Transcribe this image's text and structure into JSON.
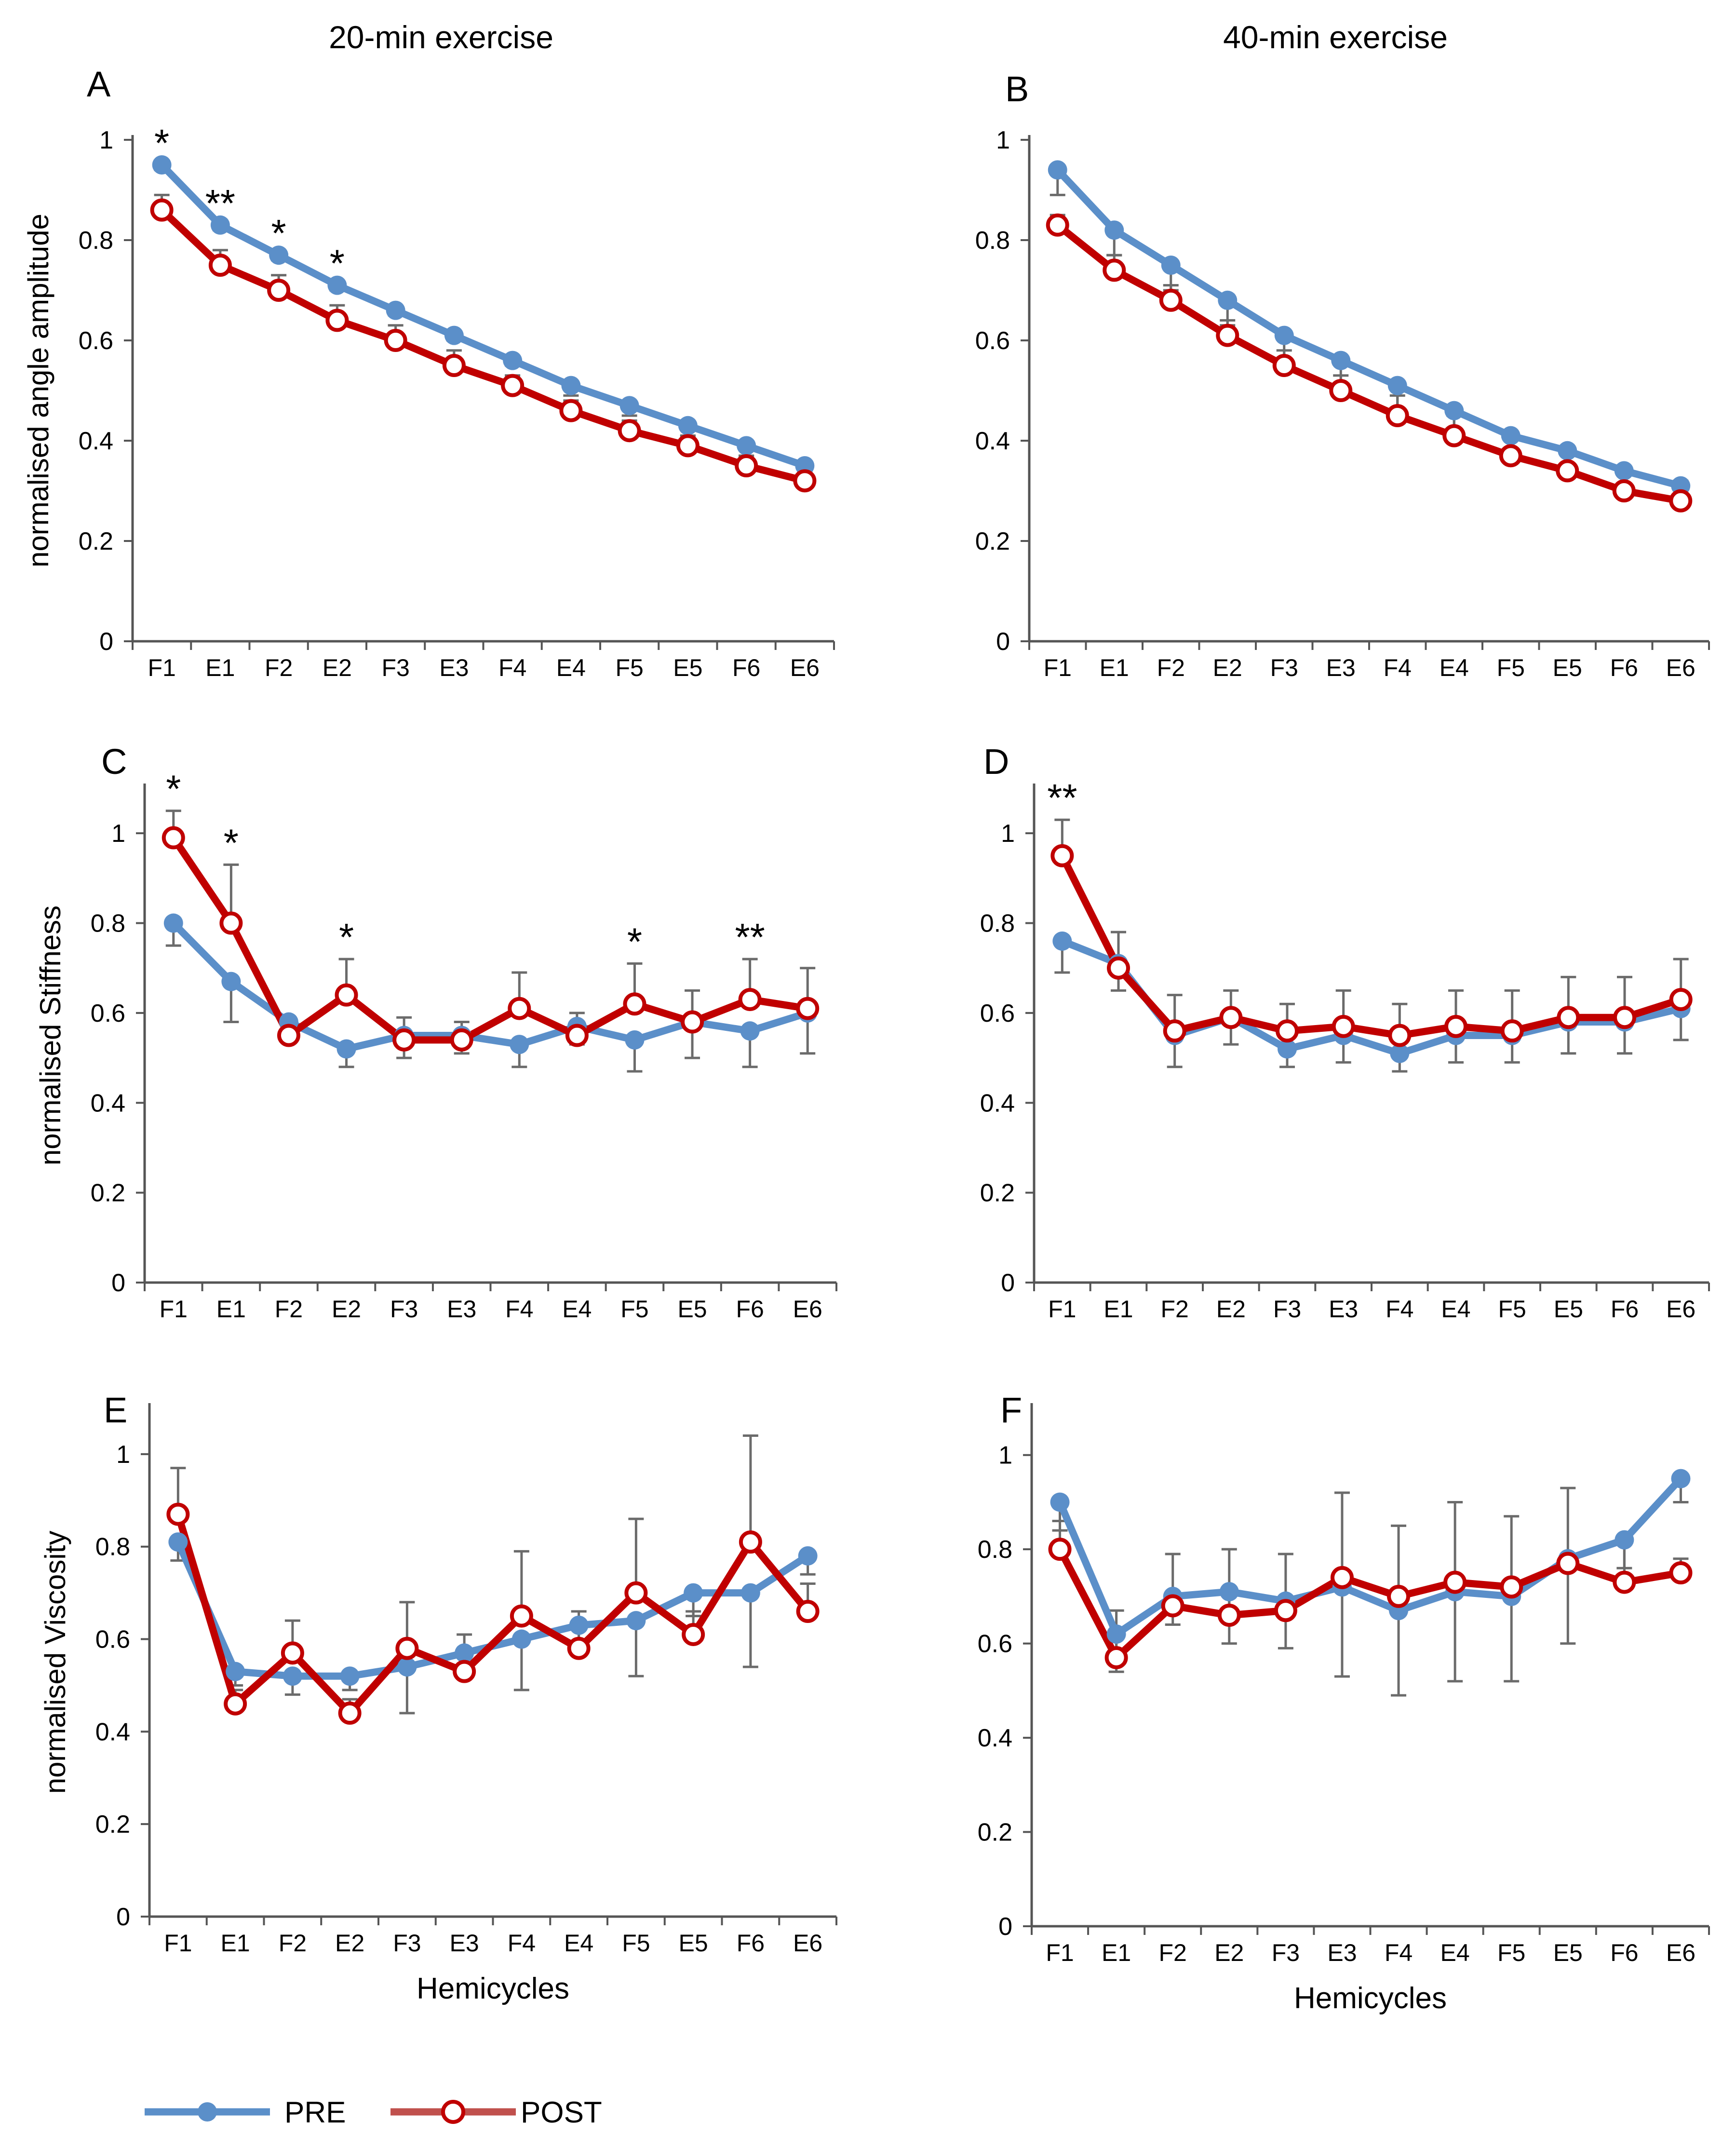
{
  "column_titles": [
    "20-min exercise",
    "40-min exercise"
  ],
  "legend": [
    {
      "label": "PRE",
      "color": "#5b8fc9",
      "marker": "filled"
    },
    {
      "label": "POST",
      "color": "#c00000",
      "marker": "open"
    }
  ],
  "chart_data": [
    {
      "panel": "A",
      "type": "line",
      "column": "20-min exercise",
      "ylabel": "normalised angle amplitude",
      "xlabel": "",
      "ylim": [
        0,
        1
      ],
      "yticks": [
        "0",
        "0.2",
        "0.4",
        "0.6",
        "0.8",
        "1"
      ],
      "categories": [
        "F1",
        "E1",
        "F2",
        "E2",
        "F3",
        "E3",
        "F4",
        "E4",
        "F5",
        "E5",
        "F6",
        "E6"
      ],
      "series": [
        {
          "name": "PRE",
          "values": [
            0.95,
            0.83,
            0.77,
            0.71,
            0.66,
            0.61,
            0.56,
            0.51,
            0.47,
            0.43,
            0.39,
            0.35
          ],
          "error": [
            0.01,
            0.01,
            0.01,
            0.01,
            0.01,
            0.01,
            0.01,
            0.02,
            0.02,
            0.02,
            0.02,
            0.02
          ]
        },
        {
          "name": "POST",
          "values": [
            0.86,
            0.75,
            0.7,
            0.64,
            0.6,
            0.55,
            0.51,
            0.46,
            0.42,
            0.39,
            0.35,
            0.32
          ],
          "error": [
            0.03,
            0.03,
            0.03,
            0.03,
            0.03,
            0.03,
            0.02,
            0.02,
            0.02,
            0.02,
            0.02,
            0.02
          ]
        }
      ],
      "significance": [
        {
          "category": "F1",
          "label": "*"
        },
        {
          "category": "E1",
          "label": "**"
        },
        {
          "category": "F2",
          "label": "*"
        },
        {
          "category": "E2",
          "label": "*"
        }
      ]
    },
    {
      "panel": "B",
      "type": "line",
      "column": "40-min exercise",
      "ylabel": "",
      "xlabel": "",
      "ylim": [
        0,
        1
      ],
      "yticks": [
        "0",
        "0.2",
        "0.4",
        "0.6",
        "0.8",
        "1"
      ],
      "categories": [
        "F1",
        "E1",
        "F2",
        "E2",
        "F3",
        "E3",
        "F4",
        "E4",
        "F5",
        "E5",
        "F6",
        "E6"
      ],
      "series": [
        {
          "name": "PRE",
          "values": [
            0.94,
            0.82,
            0.75,
            0.68,
            0.61,
            0.56,
            0.51,
            0.46,
            0.41,
            0.38,
            0.34,
            0.31
          ],
          "error": [
            0.05,
            0.05,
            0.05,
            0.05,
            0.05,
            0.05,
            0.05,
            0.05,
            0.05,
            0.05,
            0.04,
            0.04
          ]
        },
        {
          "name": "POST",
          "values": [
            0.83,
            0.74,
            0.68,
            0.61,
            0.55,
            0.5,
            0.45,
            0.41,
            0.37,
            0.34,
            0.3,
            0.28
          ],
          "error": [
            0.02,
            0.03,
            0.03,
            0.03,
            0.03,
            0.03,
            0.04,
            0.04,
            0.04,
            0.04,
            0.04,
            0.04
          ]
        }
      ],
      "significance": []
    },
    {
      "panel": "C",
      "type": "line",
      "column": "20-min exercise",
      "ylabel": "normalised Stiffness",
      "xlabel": "",
      "ylim": [
        0,
        1.1
      ],
      "yticks": [
        "0",
        "0.2",
        "0.4",
        "0.6",
        "0.8",
        "1"
      ],
      "categories": [
        "F1",
        "E1",
        "F2",
        "E2",
        "F3",
        "E3",
        "F4",
        "E4",
        "F5",
        "E5",
        "F6",
        "E6"
      ],
      "series": [
        {
          "name": "PRE",
          "values": [
            0.8,
            0.67,
            0.58,
            0.52,
            0.55,
            0.55,
            0.53,
            0.57,
            0.54,
            0.58,
            0.56,
            0.6
          ],
          "error": [
            0.05,
            0.09,
            0.04,
            0.04,
            0.05,
            0.04,
            0.05,
            0.04,
            0.07,
            0.08,
            0.08,
            0.09
          ]
        },
        {
          "name": "POST",
          "values": [
            0.99,
            0.8,
            0.55,
            0.64,
            0.54,
            0.54,
            0.61,
            0.55,
            0.62,
            0.58,
            0.63,
            0.61
          ],
          "error": [
            0.06,
            0.13,
            0.02,
            0.08,
            0.05,
            0.04,
            0.08,
            0.05,
            0.09,
            0.07,
            0.09,
            0.09
          ]
        }
      ],
      "significance": [
        {
          "category": "F1",
          "label": "*"
        },
        {
          "category": "E1",
          "label": "*"
        },
        {
          "category": "E2",
          "label": "*"
        },
        {
          "category": "F5",
          "label": "*"
        },
        {
          "category": "F6",
          "label": "**"
        }
      ]
    },
    {
      "panel": "D",
      "type": "line",
      "column": "40-min exercise",
      "ylabel": "",
      "xlabel": "",
      "ylim": [
        0,
        1.1
      ],
      "yticks": [
        "0",
        "0.2",
        "0.4",
        "0.6",
        "0.8",
        "1"
      ],
      "categories": [
        "F1",
        "E1",
        "F2",
        "E2",
        "F3",
        "E3",
        "F4",
        "E4",
        "F5",
        "E5",
        "F6",
        "E6"
      ],
      "series": [
        {
          "name": "PRE",
          "values": [
            0.76,
            0.71,
            0.55,
            0.59,
            0.52,
            0.55,
            0.51,
            0.55,
            0.55,
            0.58,
            0.58,
            0.61
          ],
          "error": [
            0.07,
            0.06,
            0.07,
            0.06,
            0.04,
            0.06,
            0.04,
            0.06,
            0.06,
            0.07,
            0.07,
            0.07
          ]
        },
        {
          "name": "POST",
          "values": [
            0.95,
            0.7,
            0.56,
            0.59,
            0.56,
            0.57,
            0.55,
            0.57,
            0.56,
            0.59,
            0.59,
            0.63
          ],
          "error": [
            0.08,
            0.08,
            0.08,
            0.06,
            0.06,
            0.08,
            0.07,
            0.08,
            0.09,
            0.09,
            0.09,
            0.09
          ]
        }
      ],
      "significance": [
        {
          "category": "F1",
          "label": "**"
        }
      ]
    },
    {
      "panel": "E",
      "type": "line",
      "column": "20-min exercise",
      "ylabel": "normalised Viscosity",
      "xlabel": "Hemicycles",
      "ylim": [
        0,
        1.1
      ],
      "yticks": [
        "0",
        "0.2",
        "0.4",
        "0.6",
        "0.8",
        "1"
      ],
      "categories": [
        "F1",
        "E1",
        "F2",
        "E2",
        "F3",
        "E3",
        "F4",
        "E4",
        "F5",
        "E5",
        "F6",
        "E6"
      ],
      "series": [
        {
          "name": "PRE",
          "values": [
            0.81,
            0.53,
            0.52,
            0.52,
            0.54,
            0.57,
            0.6,
            0.63,
            0.64,
            0.7,
            0.7,
            0.78
          ],
          "error": [
            0.04,
            0.03,
            0.04,
            0.03,
            0.1,
            0.04,
            0.11,
            0.05,
            0.12,
            0.05,
            0.16,
            0.04
          ]
        },
        {
          "name": "POST",
          "values": [
            0.87,
            0.46,
            0.57,
            0.44,
            0.58,
            0.53,
            0.65,
            0.58,
            0.7,
            0.61,
            0.81,
            0.66
          ],
          "error": [
            0.1,
            0.03,
            0.07,
            0.03,
            0.1,
            0.08,
            0.14,
            0.08,
            0.16,
            0.05,
            0.23,
            0.06
          ]
        }
      ],
      "significance": []
    },
    {
      "panel": "F",
      "type": "line",
      "column": "40-min exercise",
      "ylabel": "",
      "xlabel": "Hemicycles",
      "ylim": [
        0,
        1.1
      ],
      "yticks": [
        "0",
        "0.2",
        "0.4",
        "0.6",
        "0.8",
        "1"
      ],
      "categories": [
        "F1",
        "E1",
        "F2",
        "E2",
        "F3",
        "E3",
        "F4",
        "E4",
        "F5",
        "E5",
        "F6",
        "E6"
      ],
      "series": [
        {
          "name": "PRE",
          "values": [
            0.9,
            0.62,
            0.7,
            0.71,
            0.69,
            0.72,
            0.67,
            0.71,
            0.7,
            0.78,
            0.82,
            0.95
          ],
          "error": [
            0.06,
            0.08,
            0.06,
            0.11,
            0.1,
            0.19,
            0.18,
            0.19,
            0.18,
            0.18,
            0.06,
            0.05
          ]
        },
        {
          "name": "POST",
          "values": [
            0.8,
            0.57,
            0.68,
            0.66,
            0.67,
            0.74,
            0.7,
            0.73,
            0.72,
            0.77,
            0.73,
            0.75
          ],
          "error": [
            0.06,
            0.1,
            0.11,
            0.14,
            0.12,
            0.18,
            0.15,
            0.17,
            0.15,
            0.16,
            0.08,
            0.03
          ]
        }
      ],
      "significance": []
    }
  ]
}
